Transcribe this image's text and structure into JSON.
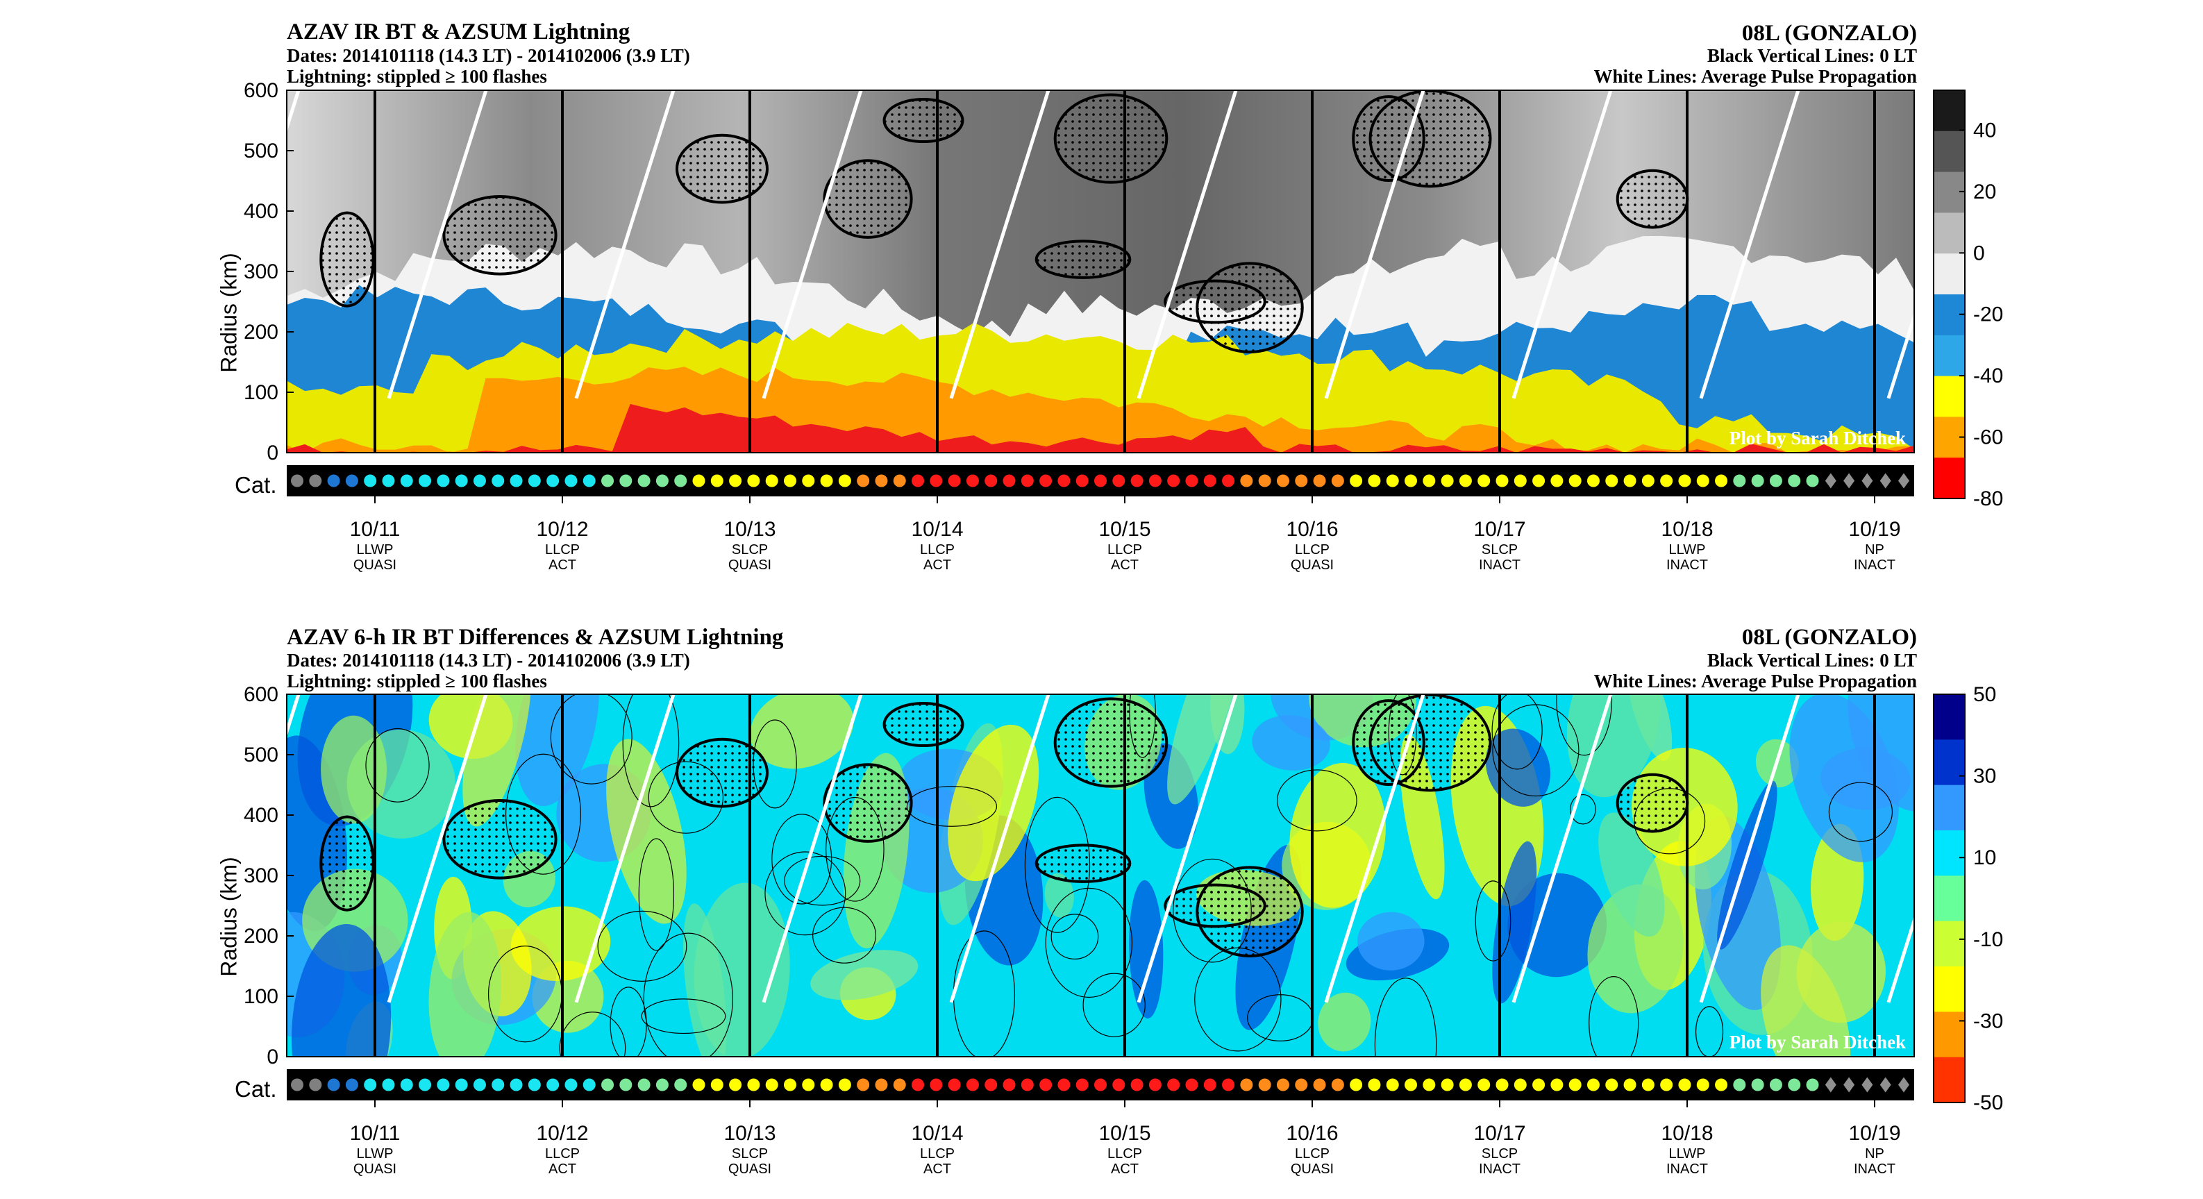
{
  "panels": [
    {
      "title": "AZAV IR BT & AZSUM Lightning",
      "dates": "Dates: 2014101118 (14.3 LT) - 2014102006 (3.9 LT)",
      "lightning": "Lightning: stippled ≥ 100 flashes",
      "storm": "08L (GONZALO)",
      "vlines": "Black Vertical Lines: 0 LT",
      "wlines": "White Lines: Average Pulse Propagation",
      "ylabel": "Radius (km)",
      "cat_label": "Cat.",
      "credit": "Plot by Sarah Ditchek",
      "colorbar": {
        "ticks": [
          "40",
          "20",
          "0",
          "-20",
          "-40",
          "-60",
          "-80"
        ],
        "tick_values": [
          40,
          20,
          0,
          -20,
          -40,
          -60,
          -80
        ],
        "range": [
          -80,
          53
        ]
      }
    },
    {
      "title": "AZAV 6-h IR BT Differences & AZSUM Lightning",
      "dates": "Dates: 2014101118 (14.3 LT) - 2014102006 (3.9 LT)",
      "lightning": "Lightning: stippled ≥ 100 flashes",
      "storm": "08L (GONZALO)",
      "vlines": "Black Vertical Lines: 0 LT",
      "wlines": "White Lines: Average Pulse Propagation",
      "ylabel": "Radius (km)",
      "cat_label": "Cat.",
      "credit": "Plot by Sarah Ditchek",
      "colorbar": {
        "ticks": [
          "50",
          "30",
          "10",
          "-10",
          "-30",
          "-50"
        ],
        "tick_values": [
          50,
          30,
          10,
          -10,
          -30,
          -50
        ],
        "range": [
          -50,
          50
        ]
      }
    }
  ],
  "chart_data": {
    "type": "heatmap",
    "y_ticks": [
      "600",
      "500",
      "400",
      "300",
      "200",
      "100",
      "0"
    ],
    "y_values": [
      600,
      500,
      400,
      300,
      200,
      100,
      0
    ],
    "ylim": [
      0,
      600
    ],
    "dates": [
      {
        "date": "10/11",
        "phase": "LLWP",
        "activity": "QUASI"
      },
      {
        "date": "10/12",
        "phase": "LLCP",
        "activity": "ACT"
      },
      {
        "date": "10/13",
        "phase": "SLCP",
        "activity": "QUASI"
      },
      {
        "date": "10/14",
        "phase": "LLCP",
        "activity": "ACT"
      },
      {
        "date": "10/15",
        "phase": "LLCP",
        "activity": "ACT"
      },
      {
        "date": "10/16",
        "phase": "LLCP",
        "activity": "QUASI"
      },
      {
        "date": "10/17",
        "phase": "SLCP",
        "activity": "INACT"
      },
      {
        "date": "10/18",
        "phase": "LLWP",
        "activity": "INACT"
      },
      {
        "date": "10/19",
        "phase": "NP",
        "activity": "INACT"
      }
    ],
    "category_markers": [
      "gray",
      "gray",
      "blue",
      "blue",
      "cyan",
      "cyan",
      "cyan",
      "cyan",
      "cyan",
      "cyan",
      "cyan",
      "cyan",
      "cyan",
      "cyan",
      "cyan",
      "cyan",
      "cyan",
      "green",
      "green",
      "green",
      "green",
      "green",
      "yellow",
      "yellow",
      "yellow",
      "yellow",
      "yellow",
      "yellow",
      "yellow",
      "yellow",
      "yellow",
      "orange",
      "orange",
      "orange",
      "red",
      "red",
      "red",
      "red",
      "red",
      "red",
      "red",
      "red",
      "red",
      "red",
      "red",
      "red",
      "red",
      "red",
      "red",
      "red",
      "red",
      "red",
      "orange",
      "orange",
      "orange",
      "orange",
      "orange",
      "orange",
      "yellow",
      "yellow",
      "yellow",
      "yellow",
      "yellow",
      "yellow",
      "yellow",
      "yellow",
      "yellow",
      "yellow",
      "yellow",
      "yellow",
      "yellow",
      "yellow",
      "yellow",
      "yellow",
      "yellow",
      "yellow",
      "yellow",
      "yellow",
      "yellow",
      "green",
      "green",
      "green",
      "green",
      "green",
      "diamond",
      "diamond",
      "diamond",
      "diamond",
      "diamond"
    ],
    "category_colors": {
      "gray": "#808080",
      "blue": "#1f77d4",
      "cyan": "#19e6f0",
      "green": "#7de89a",
      "yellow": "#ffff00",
      "orange": "#ff8c1a",
      "red": "#ff1a1a",
      "diamond": "#909090"
    },
    "upper_colormap": [
      "#1a1a1a",
      "#555555",
      "#888888",
      "#bbbbbb",
      "#eeeeee",
      "#1e88d6",
      "#2ea7e8",
      "#ffff00",
      "#ffa500",
      "#ff0000"
    ],
    "lower_colormap": [
      "#00008b",
      "#0033cc",
      "#3399ff",
      "#00e5ff",
      "#66ff99",
      "#ccff33",
      "#ffff00",
      "#ff9900",
      "#ff3300"
    ]
  }
}
